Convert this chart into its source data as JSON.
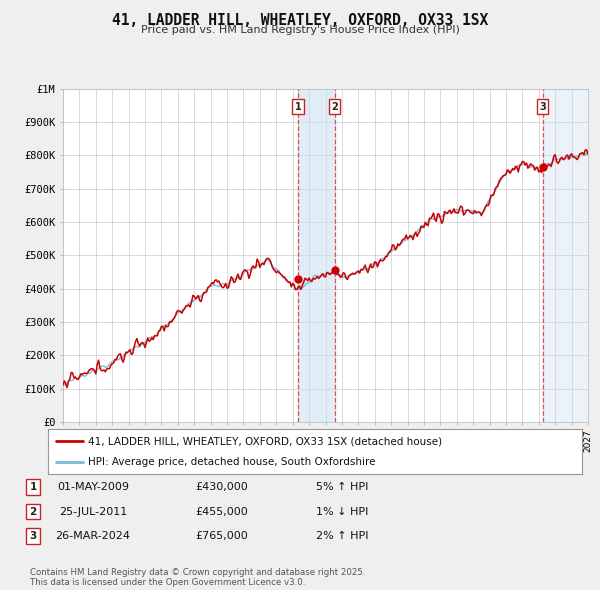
{
  "title": "41, LADDER HILL, WHEATLEY, OXFORD, OX33 1SX",
  "subtitle": "Price paid vs. HM Land Registry's House Price Index (HPI)",
  "legend_line1": "41, LADDER HILL, WHEATLEY, OXFORD, OX33 1SX (detached house)",
  "legend_line2": "HPI: Average price, detached house, South Oxfordshire",
  "footnote": "Contains HM Land Registry data © Crown copyright and database right 2025.\nThis data is licensed under the Open Government Licence v3.0.",
  "transactions": [
    {
      "num": 1,
      "date": "01-MAY-2009",
      "price": "£430,000",
      "change": "5% ↑ HPI",
      "year": 2009.33,
      "value": 430000
    },
    {
      "num": 2,
      "date": "25-JUL-2011",
      "price": "£455,000",
      "change": "1% ↓ HPI",
      "year": 2011.56,
      "value": 455000
    },
    {
      "num": 3,
      "date": "26-MAR-2024",
      "price": "£765,000",
      "change": "2% ↑ HPI",
      "year": 2024.23,
      "value": 765000
    }
  ],
  "hpi_color": "#7ab8d9",
  "price_color": "#cc0000",
  "background_color": "#efefef",
  "plot_bg_color": "#ffffff",
  "grid_color": "#cccccc",
  "ylim": [
    0,
    1000000
  ],
  "xlim_start": 1995,
  "xlim_end": 2027,
  "ytick_vals": [
    0,
    100000,
    200000,
    300000,
    400000,
    500000,
    600000,
    700000,
    800000,
    900000,
    1000000
  ],
  "ytick_labels": [
    "£0",
    "£100K",
    "£200K",
    "£300K",
    "£400K",
    "£500K",
    "£600K",
    "£700K",
    "£800K",
    "£900K",
    "£1M"
  ]
}
